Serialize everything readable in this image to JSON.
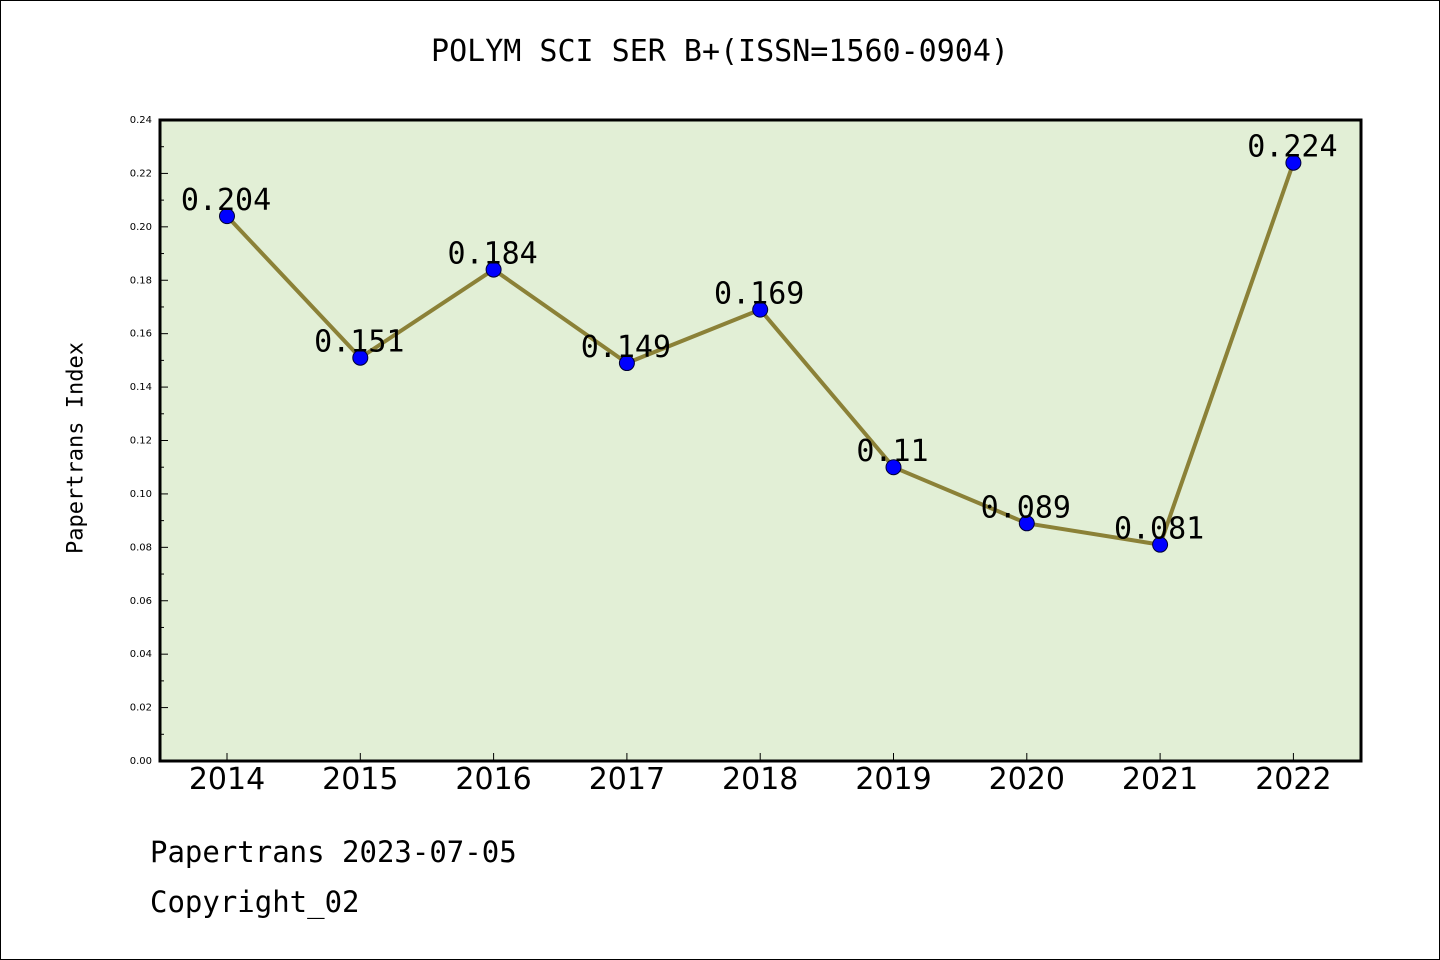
{
  "chart_data": {
    "type": "line",
    "title": "POLYM SCI SER B+(ISSN=1560-0904)",
    "xlabel": "",
    "ylabel": "Papertrans Index",
    "categories": [
      "2014",
      "2015",
      "2016",
      "2017",
      "2018",
      "2019",
      "2020",
      "2021",
      "2022"
    ],
    "values": [
      0.204,
      0.151,
      0.184,
      0.149,
      0.169,
      0.11,
      0.089,
      0.081,
      0.224
    ],
    "data_labels": [
      "0.204",
      "0.151",
      "0.184",
      "0.149",
      "0.169",
      "0.11",
      "0.089",
      "0.081",
      "0.224"
    ],
    "ylim": [
      0,
      0.24
    ],
    "yticks": [
      "0.00",
      "0.02",
      "0.04",
      "0.06",
      "0.08",
      "0.10",
      "0.12",
      "0.14",
      "0.16",
      "0.18",
      "0.20",
      "0.22",
      "0.24"
    ],
    "grid": false,
    "legend": "none",
    "colors": {
      "plot_background": "#e2efd6",
      "line": "#8b8137",
      "marker": "#0000ff"
    }
  },
  "footer": {
    "line1": "Papertrans 2023-07-05",
    "line2": "Copyright_02"
  }
}
